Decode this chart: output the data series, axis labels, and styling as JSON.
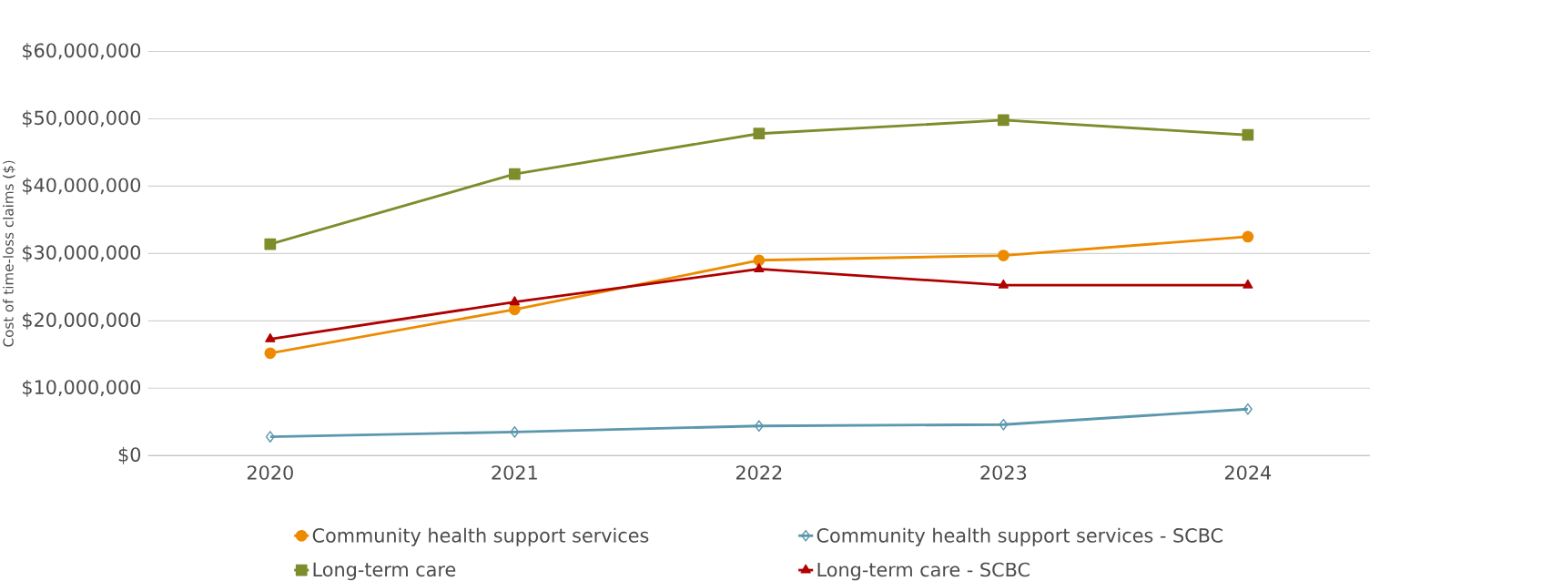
{
  "chart_data": {
    "type": "line",
    "ylabel": "Cost of time-loss claims ($)",
    "categories": [
      "2020",
      "2021",
      "2022",
      "2023",
      "2024"
    ],
    "series": [
      {
        "name": "Community health support services",
        "color": "#ed8b00",
        "marker": "circle",
        "values": [
          15200000,
          21700000,
          29000000,
          29700000,
          32500000
        ]
      },
      {
        "name": "Community health support services - SCBC",
        "color": "#5b97ad",
        "marker": "diamond",
        "values": [
          2800000,
          3500000,
          4400000,
          4600000,
          6900000
        ]
      },
      {
        "name": "Long-term care",
        "color": "#7f8c2b",
        "marker": "square",
        "values": [
          31400000,
          41800000,
          47800000,
          49800000,
          47600000
        ]
      },
      {
        "name": "Long-term care - SCBC",
        "color": "#b00000",
        "marker": "triangle",
        "values": [
          17300000,
          22800000,
          27700000,
          25300000,
          25300000
        ]
      }
    ],
    "ylim": [
      0,
      60000000
    ],
    "yticks": [
      {
        "value": 0,
        "label": "$0"
      },
      {
        "value": 10000000,
        "label": "$10,000,000"
      },
      {
        "value": 20000000,
        "label": "$20,000,000"
      },
      {
        "value": 30000000,
        "label": "$30,000,000"
      },
      {
        "value": 40000000,
        "label": "$40,000,000"
      },
      {
        "value": 50000000,
        "label": "$50,000,000"
      },
      {
        "value": 60000000,
        "label": "$60,000,000"
      }
    ],
    "grid": "y",
    "legend": "bottom",
    "line_style": "solid"
  }
}
